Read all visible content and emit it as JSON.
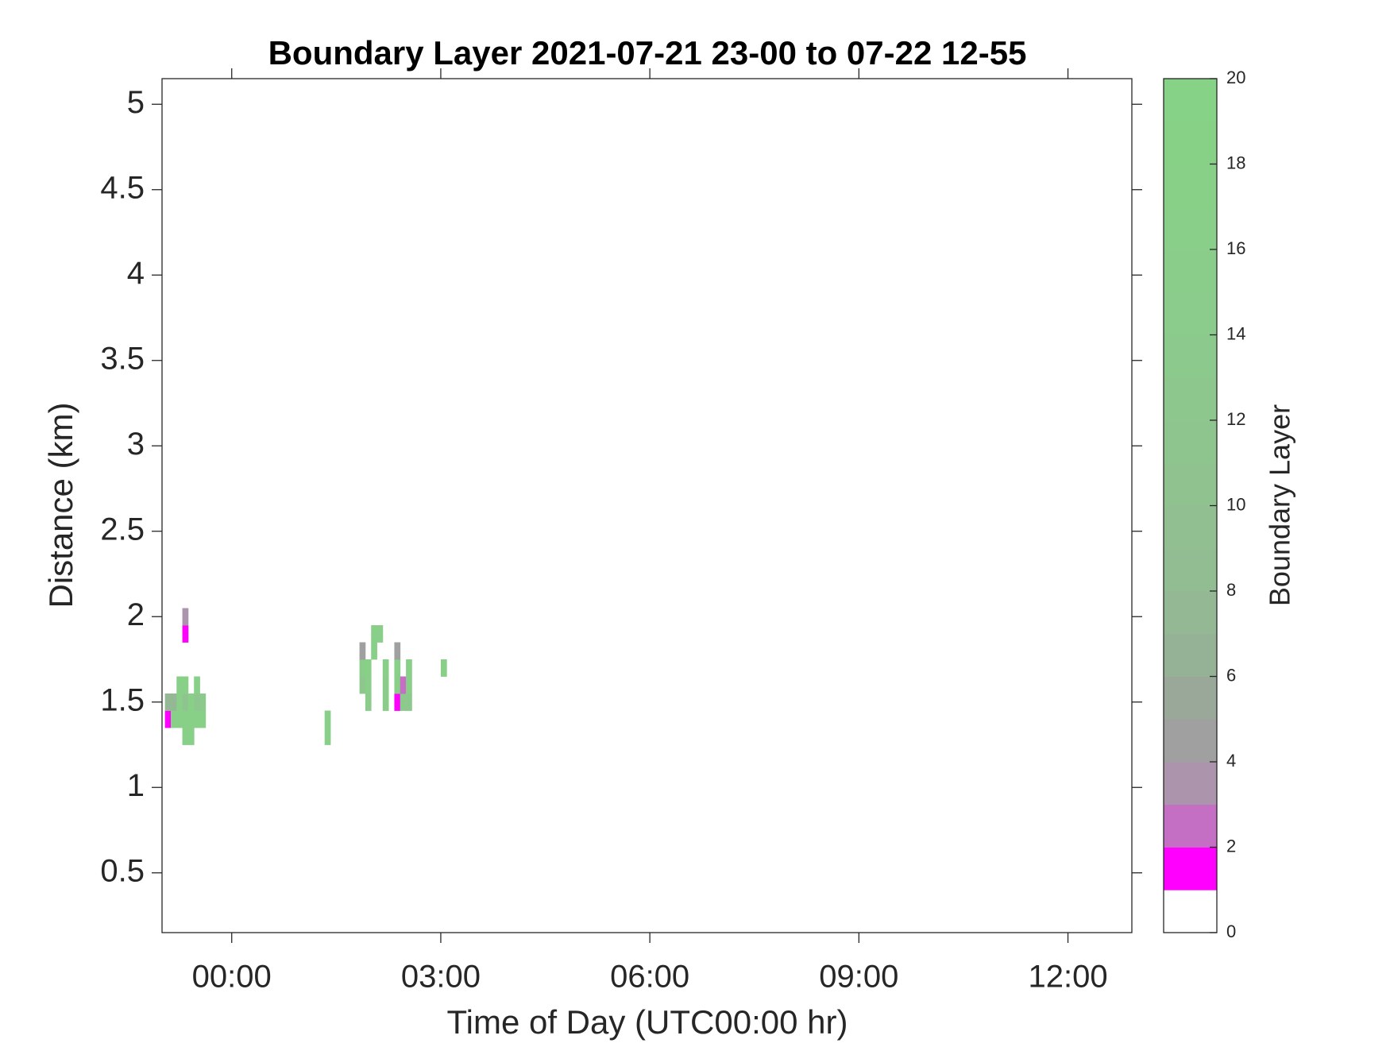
{
  "chart_data": {
    "type": "heatmap",
    "title": "Boundary Layer 2021-07-21 23-00 to 07-22 12-55",
    "x_label": "Time of Day (UTC00:00 hr)",
    "y_label": "Distance (km)",
    "colorbar_label": "Boundary Layer",
    "xlim": [
      -1,
      12.917
    ],
    "xticks": [
      {
        "value": 0,
        "label": "00:00"
      },
      {
        "value": 3,
        "label": "03:00"
      },
      {
        "value": 6,
        "label": "06:00"
      },
      {
        "value": 9,
        "label": "09:00"
      },
      {
        "value": 12,
        "label": "12:00"
      }
    ],
    "ylim": [
      0.15,
      5.15
    ],
    "yticks": [
      0.5,
      1,
      1.5,
      2,
      2.5,
      3,
      3.5,
      4,
      4.5,
      5
    ],
    "clim": [
      0,
      20
    ],
    "cticks": [
      0,
      2,
      4,
      6,
      8,
      10,
      12,
      14,
      16,
      18,
      20
    ],
    "colormap": [
      "#ffffff",
      "#ff00ff",
      "#c46ec4",
      "#ad94ad",
      "#a0a0a0",
      "#9aa89a",
      "#96b296",
      "#94b894",
      "#92bc92",
      "#91bf91",
      "#8fc28f",
      "#8ec58e",
      "#8dc78d",
      "#8cc98c",
      "#8bcb8b",
      "#8acd8a",
      "#89cf89",
      "#88d088",
      "#87d187",
      "#86d286"
    ],
    "x_step": 0.0833,
    "y_step": 0.1,
    "cells": [
      {
        "x": -0.917,
        "y": 1.4,
        "value": 1.5
      },
      {
        "x": -0.917,
        "y": 1.5,
        "value": 7.5
      },
      {
        "x": -0.833,
        "y": 1.4,
        "value": 17.5
      },
      {
        "x": -0.833,
        "y": 1.5,
        "value": 7.5
      },
      {
        "x": -0.75,
        "y": 1.4,
        "value": 17.5
      },
      {
        "x": -0.75,
        "y": 1.5,
        "value": 16.5
      },
      {
        "x": -0.75,
        "y": 1.6,
        "value": 17.5
      },
      {
        "x": -0.667,
        "y": 1.3,
        "value": 17.5
      },
      {
        "x": -0.667,
        "y": 1.4,
        "value": 17.5
      },
      {
        "x": -0.667,
        "y": 1.5,
        "value": 11.5
      },
      {
        "x": -0.667,
        "y": 1.6,
        "value": 17.5
      },
      {
        "x": -0.667,
        "y": 1.9,
        "value": 1.5
      },
      {
        "x": -0.667,
        "y": 2.0,
        "value": 3.5
      },
      {
        "x": -0.583,
        "y": 1.3,
        "value": 17.5
      },
      {
        "x": -0.583,
        "y": 1.4,
        "value": 17.5
      },
      {
        "x": -0.583,
        "y": 1.5,
        "value": 17.5
      },
      {
        "x": -0.5,
        "y": 1.4,
        "value": 17.5
      },
      {
        "x": -0.5,
        "y": 1.5,
        "value": 12.5
      },
      {
        "x": -0.5,
        "y": 1.6,
        "value": 17.5
      },
      {
        "x": -0.417,
        "y": 1.4,
        "value": 17.5
      },
      {
        "x": -0.417,
        "y": 1.5,
        "value": 13.5
      },
      {
        "x": 1.375,
        "y": 1.3,
        "value": 16.5
      },
      {
        "x": 1.375,
        "y": 1.4,
        "value": 16.5
      },
      {
        "x": 1.875,
        "y": 1.6,
        "value": 12.5
      },
      {
        "x": 1.875,
        "y": 1.7,
        "value": 15.5
      },
      {
        "x": 1.875,
        "y": 1.8,
        "value": 4.5
      },
      {
        "x": 1.958,
        "y": 1.5,
        "value": 14.5
      },
      {
        "x": 1.958,
        "y": 1.6,
        "value": 16.5
      },
      {
        "x": 1.958,
        "y": 1.7,
        "value": 17.5
      },
      {
        "x": 2.042,
        "y": 1.8,
        "value": 17.5
      },
      {
        "x": 2.042,
        "y": 1.9,
        "value": 17.5
      },
      {
        "x": 2.125,
        "y": 1.9,
        "value": 16.5
      },
      {
        "x": 2.208,
        "y": 1.5,
        "value": 15.5
      },
      {
        "x": 2.208,
        "y": 1.6,
        "value": 15.5
      },
      {
        "x": 2.208,
        "y": 1.7,
        "value": 16.5
      },
      {
        "x": 2.375,
        "y": 1.5,
        "value": 1.5
      },
      {
        "x": 2.375,
        "y": 1.6,
        "value": 17.5
      },
      {
        "x": 2.375,
        "y": 1.7,
        "value": 16.5
      },
      {
        "x": 2.375,
        "y": 1.8,
        "value": 4.5
      },
      {
        "x": 2.458,
        "y": 1.5,
        "value": 13.5
      },
      {
        "x": 2.458,
        "y": 1.6,
        "value": 2.5
      },
      {
        "x": 2.542,
        "y": 1.5,
        "value": 13.5
      },
      {
        "x": 2.542,
        "y": 1.6,
        "value": 16.5
      },
      {
        "x": 2.542,
        "y": 1.7,
        "value": 17.5
      },
      {
        "x": 3.042,
        "y": 1.7,
        "value": 17.5
      }
    ]
  }
}
